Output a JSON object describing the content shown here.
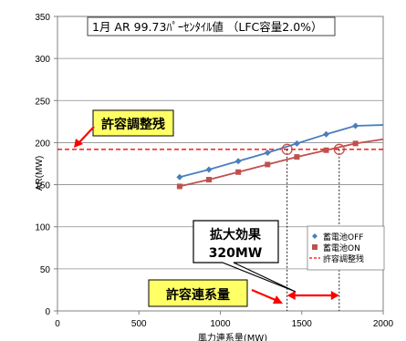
{
  "chart_data": {
    "type": "line",
    "title": "1月 AR 99.73ﾊﾟｰｾﾝﾀｲﾙ値 （LFC容量2.0%）",
    "xlabel": "風力連系量(MW)",
    "ylabel": "AR(MW)",
    "xlim": [
      0,
      2000
    ],
    "ylim": [
      0,
      350
    ],
    "x_ticks": [
      0,
      500,
      1000,
      1500,
      2000
    ],
    "y_ticks": [
      0,
      50,
      100,
      150,
      200,
      250,
      300,
      350
    ],
    "grid": "horizontal",
    "legend_position": "lower-right",
    "series": [
      {
        "name": "蓄電池OFF",
        "color": "#4A7EBB",
        "marker": "diamond",
        "x": [
          750,
          930,
          1110,
          1290,
          1470,
          1650,
          1830
        ],
        "y": [
          159,
          168,
          178,
          188,
          199,
          210,
          220
        ],
        "line_end": [
          2000,
          221
        ]
      },
      {
        "name": "蓄電池ON",
        "color": "#C0504D",
        "marker": "square",
        "x": [
          750,
          930,
          1110,
          1290,
          1470,
          1650,
          1830
        ],
        "y": [
          148,
          156,
          165,
          174,
          183,
          191,
          199
        ],
        "line_end": [
          2000,
          204
        ]
      },
      {
        "name": "許容調整残",
        "color": "#FF0000",
        "style": "dashed",
        "x": [
          0,
          2000
        ],
        "y": [
          192,
          192
        ]
      }
    ],
    "annotations": {
      "allowable_remaining_label": "許容調整残",
      "effect_label_line1": "拡大効果",
      "effect_label_line2": "320MW",
      "allowable_connection_label": "許容連系量",
      "intersection_off_x": 1410,
      "intersection_on_x": 1730,
      "intersection_y": 192
    }
  }
}
